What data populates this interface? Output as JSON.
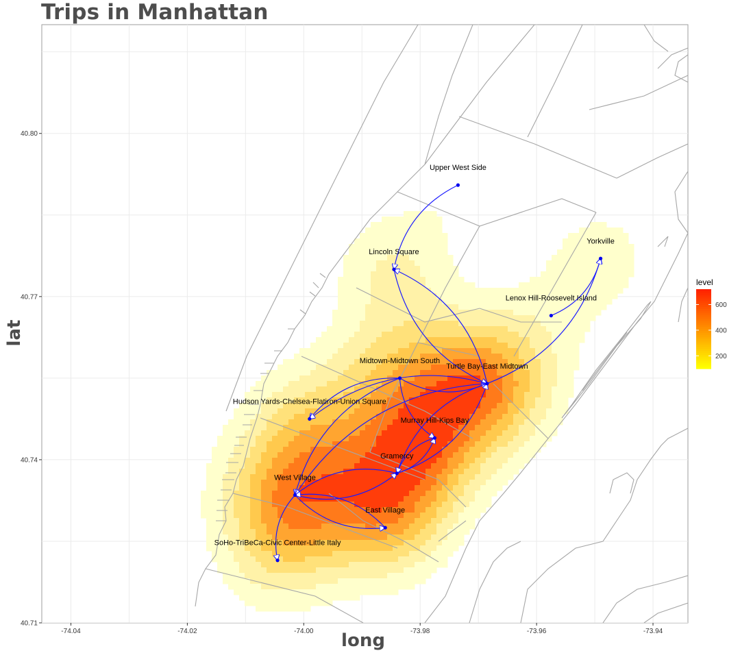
{
  "title": "Trips in Manhattan",
  "xlabel": "long",
  "ylabel": "lat",
  "x_ticks": [
    "-74.04",
    "-74.02",
    "-74.00",
    "-73.98",
    "-73.96",
    "-73.94"
  ],
  "y_ticks": [
    "40.71",
    "40.74",
    "40.77",
    "40.80"
  ],
  "legend": {
    "title": "level",
    "ticks": [
      "600",
      "400",
      "200"
    ]
  },
  "colors": {
    "arrow": "#1a1aff",
    "point": "#0000ee",
    "low": "#ffff66",
    "high": "#ff2200",
    "streets": "#a6a6a6"
  },
  "chart_data": {
    "type": "map",
    "xlim": [
      -74.045,
      -73.934
    ],
    "ylim": [
      40.71,
      40.82
    ],
    "places": [
      {
        "name": "Upper West Side",
        "long": -73.9735,
        "lat": 40.7905
      },
      {
        "name": "Lincoln Square",
        "long": -73.9845,
        "lat": 40.775
      },
      {
        "name": "Yorkville",
        "long": -73.949,
        "lat": 40.777
      },
      {
        "name": "Lenox Hill-Roosevelt Island",
        "long": -73.9575,
        "lat": 40.7665
      },
      {
        "name": "Midtown-Midtown South",
        "long": -73.9835,
        "lat": 40.755
      },
      {
        "name": "Turtle Bay-East Midtown",
        "long": -73.9685,
        "lat": 40.754
      },
      {
        "name": "Hudson Yards-Chelsea-Flatiron-Union Square",
        "long": -73.999,
        "lat": 40.7475
      },
      {
        "name": "Murray Hill-Kips Bay",
        "long": -73.9775,
        "lat": 40.744
      },
      {
        "name": "Gramercy",
        "long": -73.984,
        "lat": 40.7375
      },
      {
        "name": "West Village",
        "long": -74.0015,
        "lat": 40.7335
      },
      {
        "name": "East Village",
        "long": -73.986,
        "lat": 40.7275
      },
      {
        "name": "SoHo-TriBeCa-Civic Center-Little Italy",
        "long": -74.0045,
        "lat": 40.7215
      }
    ],
    "routes": [
      [
        "Upper West Side",
        "Lincoln Square"
      ],
      [
        "Lincoln Square",
        "Turtle Bay-East Midtown"
      ],
      [
        "Turtle Bay-East Midtown",
        "Lincoln Square"
      ],
      [
        "Lenox Hill-Roosevelt Island",
        "Yorkville"
      ],
      [
        "Turtle Bay-East Midtown",
        "Yorkville"
      ],
      [
        "Midtown-Midtown South",
        "Turtle Bay-East Midtown"
      ],
      [
        "Midtown-Midtown South",
        "Murray Hill-Kips Bay"
      ],
      [
        "Midtown-Midtown South",
        "Hudson Yards-Chelsea-Flatiron-Union Square"
      ],
      [
        "Turtle Bay-East Midtown",
        "Hudson Yards-Chelsea-Flatiron-Union Square"
      ],
      [
        "Turtle Bay-East Midtown",
        "Gramercy"
      ],
      [
        "Gramercy",
        "Turtle Bay-East Midtown"
      ],
      [
        "Murray Hill-Kips Bay",
        "Gramercy"
      ],
      [
        "Gramercy",
        "Murray Hill-Kips Bay"
      ],
      [
        "Midtown-Midtown South",
        "West Village"
      ],
      [
        "Turtle Bay-East Midtown",
        "West Village"
      ],
      [
        "Gramercy",
        "West Village"
      ],
      [
        "West Village",
        "Gramercy"
      ],
      [
        "West Village",
        "East Village"
      ],
      [
        "East Village",
        "West Village"
      ],
      [
        "West Village",
        "SoHo-TriBeCa-Civic Center-Little Italy"
      ]
    ],
    "density_levels": [
      100,
      200,
      300,
      400,
      500,
      600,
      700
    ]
  }
}
